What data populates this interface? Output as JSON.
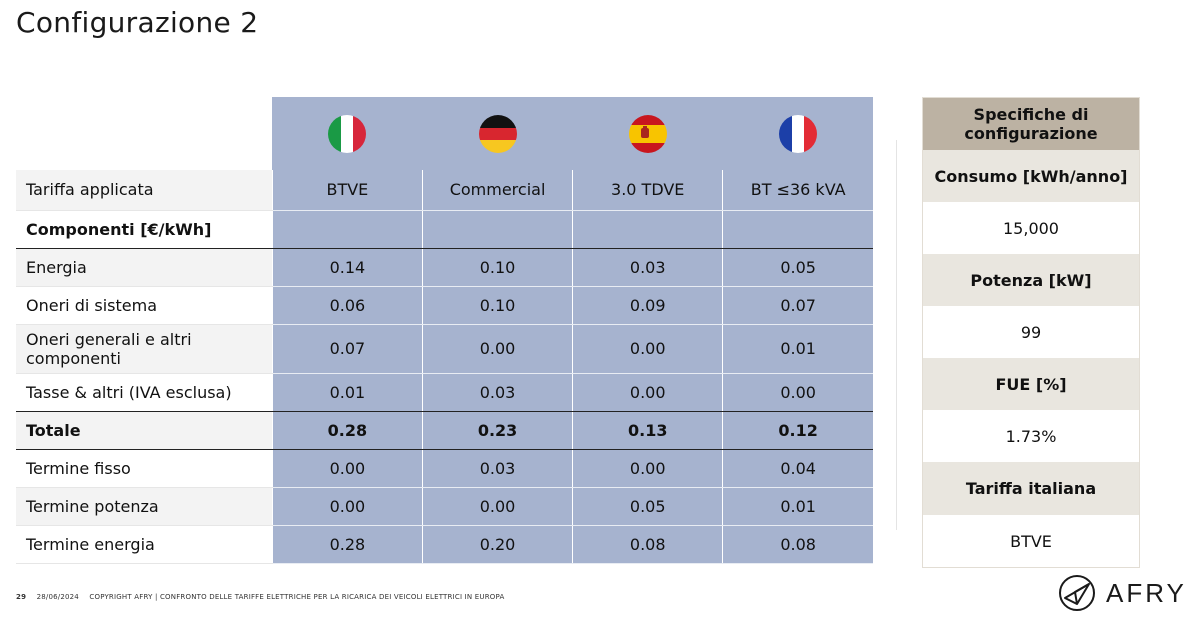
{
  "title": "Configurazione 2",
  "table": {
    "flags": [
      {
        "country": "italy",
        "icon": "italy-flag-icon"
      },
      {
        "country": "germany",
        "icon": "germany-flag-icon"
      },
      {
        "country": "spain",
        "icon": "spain-flag-icon"
      },
      {
        "country": "france",
        "icon": "france-flag-icon"
      }
    ],
    "tariff_label": "Tariffa applicata",
    "tariffs": [
      "BTVE",
      "Commercial",
      "3.0 TDVE",
      "BT ≤36 kVA"
    ],
    "components_label": "Componenti [€/kWh]",
    "rows": [
      {
        "label": "Energia",
        "values": [
          "0.14",
          "0.10",
          "0.03",
          "0.05"
        ]
      },
      {
        "label": "Oneri di sistema",
        "values": [
          "0.06",
          "0.10",
          "0.09",
          "0.07"
        ]
      },
      {
        "label": "Oneri generali e altri componenti",
        "values": [
          "0.07",
          "0.00",
          "0.00",
          "0.01"
        ]
      },
      {
        "label": "Tasse & altri (IVA esclusa)",
        "values": [
          "0.01",
          "0.03",
          "0.00",
          "0.00"
        ]
      },
      {
        "label": "Totale",
        "values": [
          "0.28",
          "0.23",
          "0.13",
          "0.12"
        ]
      },
      {
        "label": "Termine fisso",
        "values": [
          "0.00",
          "0.03",
          "0.00",
          "0.04"
        ]
      },
      {
        "label": "Termine potenza",
        "values": [
          "0.00",
          "0.00",
          "0.05",
          "0.01"
        ]
      },
      {
        "label": "Termine energia",
        "values": [
          "0.28",
          "0.20",
          "0.08",
          "0.08"
        ]
      }
    ]
  },
  "specs": {
    "title": "Specifiche di configurazione",
    "items": [
      {
        "label": "Consumo [kWh/anno]",
        "value": "15,000"
      },
      {
        "label": "Potenza [kW]",
        "value": "99"
      },
      {
        "label": "FUE [%]",
        "value": "1.73%"
      },
      {
        "label": "Tariffa italiana",
        "value": "BTVE"
      }
    ]
  },
  "footer": {
    "page": "29",
    "date": "28/06/2024",
    "text": "COPYRIGHT AFRY | CONFRONTO DELLE TARIFFE ELETTRICHE PER LA RICARICA DEI VEICOLI ELETTRICI IN EUROPA"
  },
  "logo": {
    "text": "AFRY",
    "icon": "afry-logo-icon"
  },
  "colors": {
    "table_fill": "#a6b3cf",
    "spec_header": "#bcb2a3",
    "spec_label": "#e9e6df"
  }
}
